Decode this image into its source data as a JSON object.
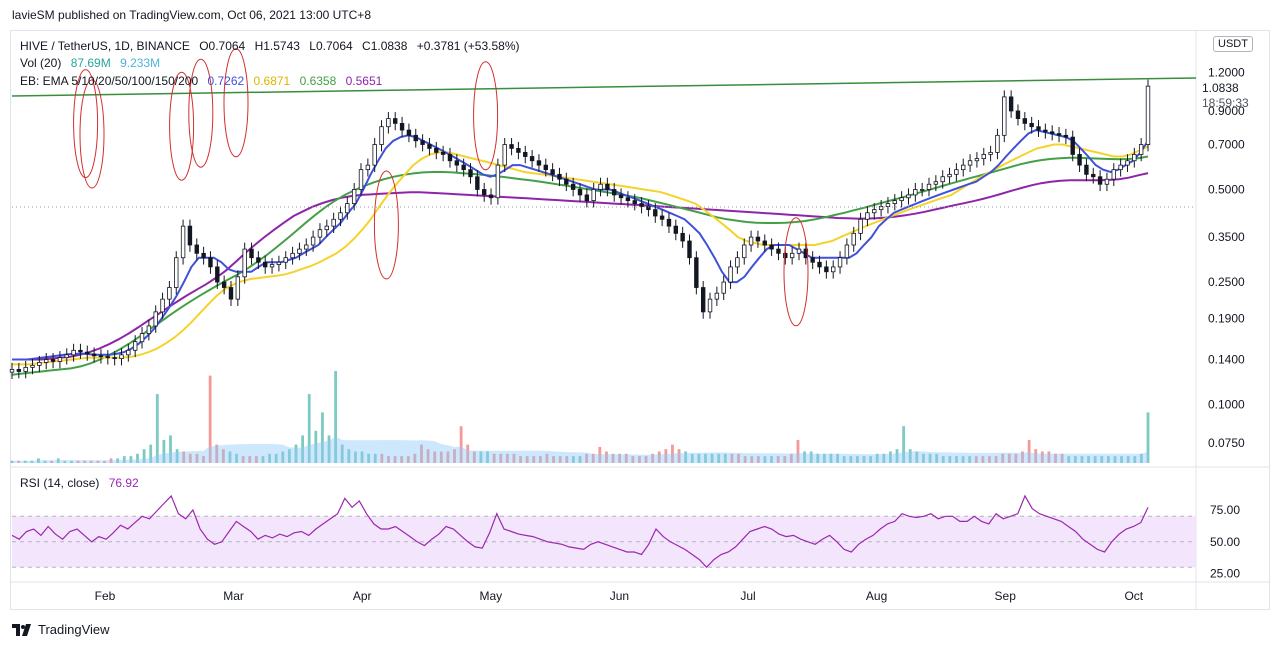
{
  "header": {
    "published": "lavieSM published on TradingView.com, Oct 06, 2021 13:00 UTC+8"
  },
  "legend": {
    "symbol": "HIVE / TetherUS, 1D, BINANCE",
    "o": "O0.7064",
    "h": "H1.5743",
    "l": "L0.7064",
    "c": "C1.0838",
    "chg": "+0.3781 (+53.58%)",
    "vol_label": "Vol (20)",
    "vol_v1": "87.69M",
    "vol_v2": "9.233M",
    "ema_label": "EB: EMA 5/10/20/50/100/150/200",
    "ema_v1": "0.7262",
    "ema_v2": "0.6871",
    "ema_v3": "0.6358",
    "ema_v4": "0.5651",
    "rsi_label": "RSI (14, close)",
    "rsi_value": "76.92"
  },
  "axis": {
    "currency": "USDT",
    "last_price": "1.0838",
    "countdown": "18:59:33"
  },
  "footer": {
    "brand": "TradingView"
  },
  "colors": {
    "up": "#26a69a",
    "down": "#ef5350",
    "candle": "#131722",
    "ema_blue": "#3f51d9",
    "ema_yellow": "#f5d32b",
    "ema_green": "#43a047",
    "ema_purple": "#8e24aa",
    "trend": "#388e3c",
    "rsi": "#9c27b0",
    "rsi_band": "#f3e5fb",
    "circle": "#d32f2f"
  },
  "chart_data": [
    {
      "type": "candlestick",
      "title": "HIVE / TetherUS, 1D, BINANCE",
      "yscale": "log",
      "ylim": [
        0.065,
        1.65
      ],
      "x_ticks": [
        "Feb",
        "Mar",
        "Apr",
        "May",
        "Jun",
        "Jul",
        "Aug",
        "Sep",
        "Oct"
      ],
      "y_ticks": [
        "1.2000",
        "0.9000",
        "0.7000",
        "0.5000",
        "0.3500",
        "0.2500",
        "0.1900",
        "0.1400",
        "0.1000",
        "0.0750"
      ],
      "series_close": [
        0.13,
        0.128,
        0.132,
        0.134,
        0.137,
        0.14,
        0.138,
        0.142,
        0.145,
        0.15,
        0.148,
        0.146,
        0.144,
        0.143,
        0.142,
        0.141,
        0.145,
        0.15,
        0.16,
        0.17,
        0.18,
        0.2,
        0.22,
        0.24,
        0.3,
        0.38,
        0.33,
        0.31,
        0.3,
        0.28,
        0.25,
        0.24,
        0.22,
        0.26,
        0.32,
        0.3,
        0.29,
        0.28,
        0.285,
        0.29,
        0.3,
        0.31,
        0.32,
        0.33,
        0.35,
        0.37,
        0.38,
        0.4,
        0.42,
        0.45,
        0.5,
        0.58,
        0.6,
        0.7,
        0.8,
        0.85,
        0.82,
        0.78,
        0.75,
        0.72,
        0.7,
        0.68,
        0.66,
        0.65,
        0.62,
        0.6,
        0.58,
        0.55,
        0.5,
        0.48,
        0.47,
        0.6,
        0.7,
        0.68,
        0.66,
        0.64,
        0.62,
        0.6,
        0.58,
        0.56,
        0.54,
        0.52,
        0.5,
        0.48,
        0.46,
        0.5,
        0.52,
        0.5,
        0.48,
        0.47,
        0.46,
        0.45,
        0.44,
        0.43,
        0.41,
        0.4,
        0.38,
        0.36,
        0.34,
        0.3,
        0.24,
        0.2,
        0.22,
        0.23,
        0.25,
        0.28,
        0.3,
        0.33,
        0.35,
        0.34,
        0.33,
        0.32,
        0.31,
        0.3,
        0.31,
        0.32,
        0.3,
        0.29,
        0.28,
        0.27,
        0.28,
        0.3,
        0.33,
        0.36,
        0.4,
        0.42,
        0.43,
        0.44,
        0.45,
        0.46,
        0.47,
        0.48,
        0.5,
        0.5,
        0.52,
        0.53,
        0.55,
        0.56,
        0.58,
        0.6,
        0.62,
        0.63,
        0.65,
        0.66,
        0.75,
        1.0,
        0.9,
        0.85,
        0.82,
        0.8,
        0.78,
        0.77,
        0.76,
        0.75,
        0.74,
        0.65,
        0.6,
        0.56,
        0.55,
        0.52,
        0.54,
        0.58,
        0.6,
        0.62,
        0.65,
        0.7,
        1.0838
      ],
      "ema_fast": [
        0.14,
        0.14,
        0.14,
        0.141,
        0.142,
        0.143,
        0.144,
        0.145,
        0.146,
        0.146,
        0.146,
        0.145,
        0.145,
        0.145,
        0.146,
        0.148,
        0.152,
        0.158,
        0.166,
        0.176,
        0.19,
        0.206,
        0.225,
        0.25,
        0.28,
        0.3,
        0.3,
        0.3,
        0.29,
        0.275,
        0.27,
        0.27,
        0.27,
        0.28,
        0.29,
        0.29,
        0.29,
        0.295,
        0.3,
        0.31,
        0.32,
        0.33,
        0.35,
        0.37,
        0.39,
        0.42,
        0.45,
        0.5,
        0.56,
        0.62,
        0.68,
        0.72,
        0.74,
        0.75,
        0.74,
        0.72,
        0.7,
        0.68,
        0.66,
        0.64,
        0.62,
        0.6,
        0.58,
        0.56,
        0.55,
        0.56,
        0.58,
        0.6,
        0.6,
        0.59,
        0.58,
        0.57,
        0.56,
        0.55,
        0.54,
        0.53,
        0.52,
        0.51,
        0.5,
        0.5,
        0.5,
        0.49,
        0.48,
        0.47,
        0.46,
        0.45,
        0.44,
        0.43,
        0.42,
        0.41,
        0.4,
        0.38,
        0.36,
        0.33,
        0.3,
        0.27,
        0.25,
        0.25,
        0.26,
        0.28,
        0.3,
        0.32,
        0.33,
        0.33,
        0.33,
        0.32,
        0.31,
        0.3,
        0.3,
        0.3,
        0.3,
        0.3,
        0.3,
        0.31,
        0.33,
        0.35,
        0.38,
        0.4,
        0.42,
        0.43,
        0.44,
        0.45,
        0.46,
        0.47,
        0.48,
        0.49,
        0.5,
        0.51,
        0.52,
        0.53,
        0.55,
        0.57,
        0.6,
        0.64,
        0.68,
        0.72,
        0.76,
        0.78,
        0.77,
        0.76,
        0.75,
        0.74,
        0.72,
        0.68,
        0.64,
        0.6,
        0.58,
        0.57,
        0.58,
        0.6,
        0.62,
        0.66,
        0.72
      ],
      "ema_mid": [
        0.135,
        0.135,
        0.135,
        0.136,
        0.137,
        0.138,
        0.139,
        0.14,
        0.141,
        0.142,
        0.142,
        0.142,
        0.142,
        0.142,
        0.143,
        0.145,
        0.148,
        0.152,
        0.158,
        0.165,
        0.174,
        0.185,
        0.198,
        0.212,
        0.226,
        0.238,
        0.246,
        0.252,
        0.256,
        0.258,
        0.26,
        0.262,
        0.265,
        0.27,
        0.276,
        0.282,
        0.29,
        0.3,
        0.31,
        0.325,
        0.345,
        0.37,
        0.4,
        0.44,
        0.48,
        0.52,
        0.56,
        0.6,
        0.63,
        0.65,
        0.66,
        0.66,
        0.65,
        0.64,
        0.63,
        0.62,
        0.61,
        0.6,
        0.59,
        0.58,
        0.57,
        0.565,
        0.56,
        0.555,
        0.55,
        0.545,
        0.54,
        0.535,
        0.53,
        0.525,
        0.52,
        0.515,
        0.51,
        0.505,
        0.5,
        0.495,
        0.49,
        0.48,
        0.47,
        0.46,
        0.45,
        0.43,
        0.41,
        0.39,
        0.37,
        0.35,
        0.34,
        0.335,
        0.33,
        0.33,
        0.33,
        0.33,
        0.33,
        0.33,
        0.33,
        0.335,
        0.34,
        0.35,
        0.36,
        0.37,
        0.38,
        0.39,
        0.4,
        0.41,
        0.42,
        0.43,
        0.44,
        0.45,
        0.46,
        0.47,
        0.48,
        0.5,
        0.52,
        0.54,
        0.56,
        0.58,
        0.6,
        0.62,
        0.64,
        0.66,
        0.68,
        0.69,
        0.7,
        0.7,
        0.69,
        0.68,
        0.67,
        0.66,
        0.65,
        0.64,
        0.64,
        0.65,
        0.67,
        0.69
      ],
      "ema_slow": [
        0.125,
        0.126,
        0.127,
        0.128,
        0.129,
        0.13,
        0.131,
        0.133,
        0.136,
        0.14,
        0.145,
        0.151,
        0.158,
        0.166,
        0.175,
        0.184,
        0.194,
        0.204,
        0.214,
        0.224,
        0.234,
        0.244,
        0.254,
        0.264,
        0.276,
        0.29,
        0.306,
        0.324,
        0.344,
        0.366,
        0.39,
        0.414,
        0.438,
        0.46,
        0.48,
        0.498,
        0.514,
        0.528,
        0.54,
        0.55,
        0.558,
        0.564,
        0.568,
        0.57,
        0.57,
        0.568,
        0.565,
        0.562,
        0.558,
        0.554,
        0.55,
        0.545,
        0.54,
        0.535,
        0.53,
        0.524,
        0.518,
        0.512,
        0.506,
        0.5,
        0.494,
        0.488,
        0.482,
        0.476,
        0.47,
        0.462,
        0.454,
        0.446,
        0.438,
        0.43,
        0.422,
        0.414,
        0.406,
        0.4,
        0.396,
        0.392,
        0.39,
        0.389,
        0.389,
        0.39,
        0.392,
        0.395,
        0.4,
        0.406,
        0.413,
        0.42,
        0.428,
        0.436,
        0.445,
        0.454,
        0.463,
        0.472,
        0.482,
        0.492,
        0.502,
        0.513,
        0.524,
        0.535,
        0.546,
        0.557,
        0.568,
        0.58,
        0.592,
        0.604,
        0.614,
        0.622,
        0.628,
        0.632,
        0.634,
        0.634,
        0.632,
        0.63,
        0.628,
        0.627,
        0.628,
        0.632,
        0.64
      ],
      "ema_long": [
        0.14,
        0.14,
        0.14,
        0.14,
        0.141,
        0.142,
        0.143,
        0.145,
        0.148,
        0.152,
        0.157,
        0.163,
        0.17,
        0.178,
        0.187,
        0.196,
        0.206,
        0.216,
        0.226,
        0.236,
        0.246,
        0.258,
        0.272,
        0.29,
        0.31,
        0.33,
        0.35,
        0.37,
        0.39,
        0.41,
        0.425,
        0.44,
        0.452,
        0.462,
        0.47,
        0.476,
        0.48,
        0.482,
        0.484,
        0.486,
        0.488,
        0.49,
        0.49,
        0.488,
        0.486,
        0.484,
        0.482,
        0.48,
        0.478,
        0.476,
        0.474,
        0.472,
        0.47,
        0.468,
        0.466,
        0.464,
        0.462,
        0.46,
        0.458,
        0.456,
        0.454,
        0.452,
        0.45,
        0.448,
        0.446,
        0.444,
        0.442,
        0.44,
        0.438,
        0.436,
        0.434,
        0.432,
        0.43,
        0.428,
        0.426,
        0.424,
        0.422,
        0.42,
        0.418,
        0.416,
        0.414,
        0.412,
        0.41,
        0.408,
        0.406,
        0.404,
        0.403,
        0.402,
        0.402,
        0.403,
        0.405,
        0.408,
        0.412,
        0.417,
        0.423,
        0.43,
        0.437,
        0.444,
        0.451,
        0.458,
        0.466,
        0.475,
        0.485,
        0.496,
        0.506,
        0.516,
        0.524,
        0.53,
        0.534,
        0.536,
        0.536,
        0.536,
        0.536,
        0.537,
        0.54,
        0.546,
        0.556,
        0.5651
      ]
    },
    {
      "type": "bar",
      "title": "Vol (20)",
      "volume": [
        1,
        1,
        1,
        1,
        2,
        1,
        1,
        2,
        1,
        1,
        1,
        1,
        1,
        1,
        1,
        2,
        2,
        3,
        3,
        4,
        6,
        8,
        30,
        10,
        12,
        6,
        5,
        4,
        4,
        3,
        38,
        8,
        6,
        5,
        4,
        3,
        3,
        3,
        3,
        4,
        4,
        5,
        6,
        8,
        12,
        30,
        14,
        22,
        12,
        40,
        8,
        6,
        5,
        5,
        4,
        4,
        4,
        3,
        3,
        3,
        3,
        4,
        8,
        6,
        5,
        5,
        5,
        6,
        16,
        8,
        5,
        5,
        5,
        4,
        4,
        4,
        4,
        3,
        3,
        3,
        3,
        4,
        3,
        3,
        3,
        3,
        3,
        4,
        4,
        7,
        5,
        4,
        4,
        4,
        3,
        3,
        3,
        4,
        5,
        6,
        8,
        6,
        5,
        4,
        4,
        4,
        4,
        4,
        4,
        4,
        4,
        3,
        3,
        3,
        3,
        3,
        3,
        3,
        4,
        10,
        5,
        5,
        4,
        4,
        4,
        4,
        3,
        3,
        3,
        3,
        3,
        4,
        4,
        5,
        6,
        16,
        6,
        5,
        4,
        4,
        4,
        3,
        3,
        3,
        3,
        3,
        3,
        3,
        3,
        3,
        4,
        4,
        4,
        5,
        10,
        6,
        5,
        5,
        4,
        4,
        3,
        3,
        3,
        3,
        3,
        3,
        3,
        3,
        3,
        3,
        3,
        4,
        22
      ]
    },
    {
      "type": "line",
      "title": "RSI (14, close)",
      "ylim": [
        20,
        100
      ],
      "y_ticks": [
        "75.00",
        "50.00",
        "25.00"
      ],
      "values": [
        55,
        52,
        58,
        60,
        55,
        62,
        56,
        52,
        58,
        60,
        55,
        50,
        54,
        52,
        57,
        63,
        60,
        65,
        70,
        68,
        74,
        80,
        86,
        72,
        68,
        75,
        60,
        52,
        48,
        50,
        58,
        66,
        62,
        58,
        52,
        55,
        53,
        56,
        54,
        57,
        58,
        55,
        60,
        64,
        68,
        72,
        84,
        77,
        82,
        72,
        64,
        60,
        60,
        62,
        58,
        54,
        50,
        47,
        52,
        56,
        62,
        60,
        55,
        50,
        46,
        45,
        57,
        72,
        60,
        58,
        56,
        55,
        54,
        52,
        50,
        49,
        48,
        46,
        45,
        44,
        48,
        50,
        48,
        46,
        44,
        42,
        42,
        40,
        48,
        60,
        54,
        50,
        47,
        44,
        40,
        36,
        30,
        36,
        40,
        42,
        46,
        52,
        58,
        60,
        62,
        60,
        56,
        54,
        55,
        52,
        50,
        48,
        52,
        55,
        50,
        44,
        42,
        48,
        52,
        55,
        60,
        64,
        66,
        72,
        70,
        69,
        70,
        72,
        68,
        70,
        70,
        66,
        66,
        70,
        66,
        64,
        72,
        68,
        70,
        72,
        86,
        76,
        72,
        70,
        68,
        66,
        62,
        58,
        52,
        48,
        44,
        42,
        50,
        56,
        60,
        62,
        65,
        76.92
      ]
    }
  ]
}
